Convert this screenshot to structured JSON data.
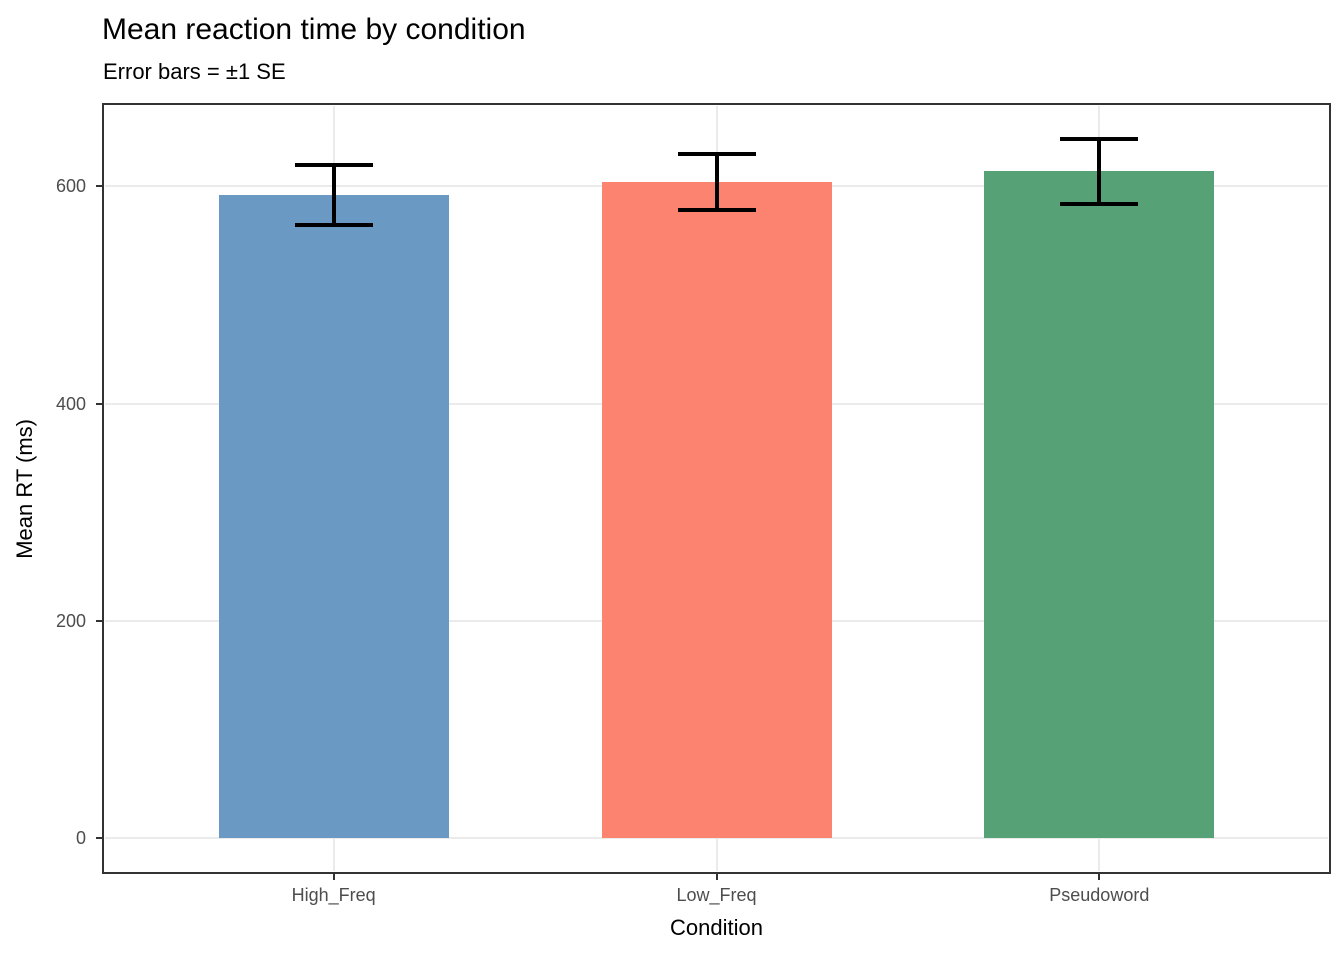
{
  "figure": {
    "title": "Mean reaction time by condition",
    "subtitle": "Error bars = ±1 SE"
  },
  "chart_data": {
    "type": "bar",
    "title": "Mean reaction time by condition",
    "subtitle": "Error bars = ±1 SE",
    "xlabel": "Condition",
    "ylabel": "Mean RT (ms)",
    "categories": [
      "High_Freq",
      "Low_Freq",
      "Pseudoword"
    ],
    "values": [
      592,
      604,
      614
    ],
    "se": [
      28,
      26,
      30
    ],
    "error_bar_note": "±1 SE",
    "bar_colors": [
      "#6A9AC4",
      "#FC8370",
      "#56A276"
    ],
    "ylim": [
      0,
      675
    ],
    "yticks": [
      0,
      200,
      400,
      600
    ],
    "ytick_labels": [
      "0",
      "200",
      "400",
      "600"
    ],
    "grid": "horizontal major at yticks, vertical at category centers",
    "legend": "none"
  },
  "style": {
    "grid_color": "#EBEBEB",
    "panel_border_color": "#333333",
    "tick_color": "#333333",
    "tick_label_color": "#4D4D4D",
    "text_color": "#000000",
    "error_bar_color": "#000000",
    "background": "#FFFFFF"
  }
}
